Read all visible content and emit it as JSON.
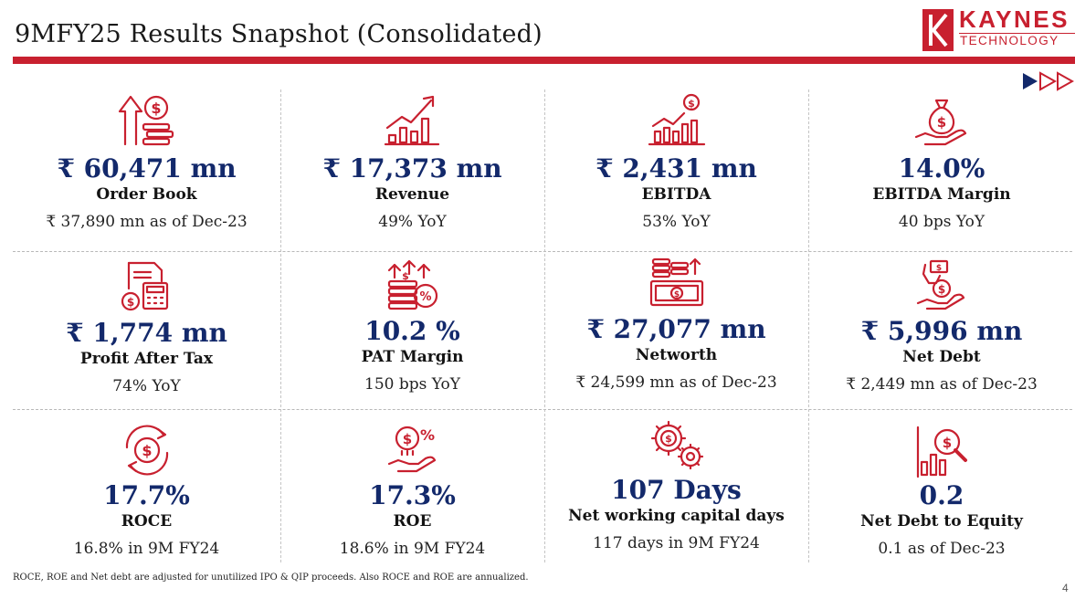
{
  "header": {
    "title": "9MFY25 Results Snapshot (Consolidated)",
    "logo_top": "KAYNES",
    "logo_bottom": "TECHNOLOGY"
  },
  "colors": {
    "accent": "#c8202f",
    "value": "#13296b",
    "nav": "#13296b"
  },
  "metrics": [
    {
      "icon": "order-book-icon",
      "value": "₹ 60,471 mn",
      "label": "Order Book",
      "sub": "₹ 37,890 mn as of Dec-23"
    },
    {
      "icon": "revenue-growth-icon",
      "value": "₹  17,373 mn",
      "label": "Revenue",
      "sub": "49% YoY"
    },
    {
      "icon": "ebitda-chart-icon",
      "value": "₹  2,431 mn",
      "label": "EBITDA",
      "sub": "53% YoY"
    },
    {
      "icon": "money-bag-hand-icon",
      "value": "14.0%",
      "label": "EBITDA Margin",
      "sub": "40 bps YoY"
    },
    {
      "icon": "calculator-invoice-icon",
      "value": "₹  1,774 mn",
      "label": "Profit After Tax",
      "sub": "74% YoY"
    },
    {
      "icon": "coins-percent-icon",
      "value": "10.2 %",
      "label": "PAT Margin",
      "sub": "150 bps YoY"
    },
    {
      "icon": "cash-coins-icon",
      "value": "₹  27,077 mn",
      "label": "Networth",
      "sub": "₹ 24,599  mn as of Dec-23"
    },
    {
      "icon": "hand-money-icon",
      "value": "₹  5,996 mn",
      "label": "Net Debt",
      "sub": "₹  2,449 mn as of Dec-23"
    },
    {
      "icon": "rotating-dollar-icon",
      "value": "17.7%",
      "label": "ROCE",
      "sub": "16.8% in 9M FY24"
    },
    {
      "icon": "hand-dollar-percent-icon",
      "value": "17.3%",
      "label": "ROE",
      "sub": "18.6% in 9M FY24"
    },
    {
      "icon": "gears-dollar-icon",
      "value": "107 Days",
      "label": "Net working capital days",
      "sub": "117 days in 9M FY24"
    },
    {
      "icon": "chart-magnifier-icon",
      "value": "0.2",
      "label": "Net Debt to Equity",
      "sub": "0.1 as of Dec-23"
    }
  ],
  "footnote": "ROCE, ROE and Net debt  are adjusted for unutilized IPO & QIP proceeds. Also ROCE and ROE are annualized.",
  "page_number": "4"
}
